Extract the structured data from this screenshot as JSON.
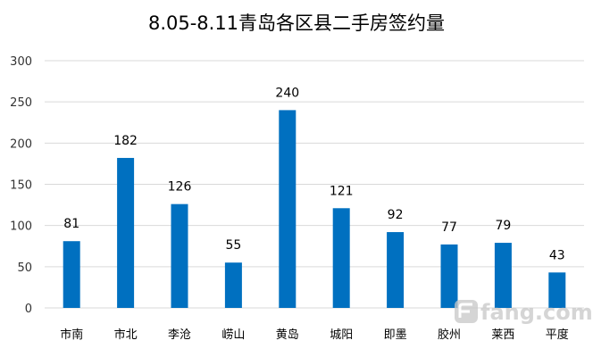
{
  "chart_data": {
    "type": "bar",
    "title": "8.05-8.11青岛各区县二手房签约量",
    "xlabel": "",
    "ylabel": "",
    "categories": [
      "市南",
      "市北",
      "李沧",
      "崂山",
      "黄岛",
      "城阳",
      "即墨",
      "胶州",
      "莱西",
      "平度"
    ],
    "values": [
      81,
      182,
      126,
      55,
      240,
      121,
      92,
      77,
      79,
      43
    ],
    "ylim": [
      0,
      300
    ],
    "yticks": [
      "0",
      "50",
      "100",
      "150",
      "200",
      "250",
      "300"
    ],
    "grid": true,
    "legend": "none",
    "data_labels": true,
    "bar_color": "#0070c0"
  },
  "watermark": {
    "text": "fang.com",
    "icon": "fang-logo-icon",
    "color": "#c8c8c8"
  }
}
